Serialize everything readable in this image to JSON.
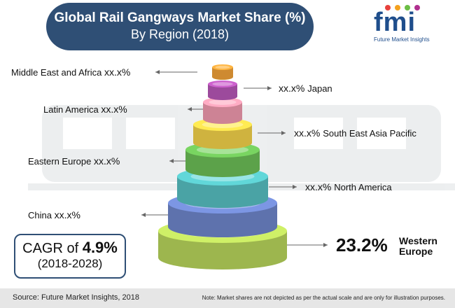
{
  "title": {
    "line1": "Global Rail Gangways Market Share (%)",
    "line2": "By Region (2018)"
  },
  "logo": {
    "mark": "fmi",
    "tagline": "Future Market Insights"
  },
  "chart_data": {
    "type": "pie",
    "title": "Global Rail Gangways Market Share (%) By Region (2018)",
    "categories": [
      "Middle East and Africa",
      "Japan",
      "Latin America",
      "South East Asia Pacific",
      "Eastern Europe",
      "North America",
      "China",
      "Western Europe"
    ],
    "value_labels": [
      "xx.x%",
      "xx.x%",
      "xx.x%",
      "xx.x%",
      "xx.x%",
      "xx.x%",
      "xx.x%",
      "23.2%"
    ],
    "values": [
      null,
      null,
      null,
      null,
      null,
      null,
      null,
      23.2
    ],
    "colors": [
      "#f2a23a",
      "#b757b8",
      "#f19aaf",
      "#f4d24a",
      "#6cbe57",
      "#57c0c2",
      "#6f86cc",
      "#b9d65c"
    ],
    "series": [
      {
        "values": [
          null,
          null,
          null,
          null,
          null,
          null,
          null,
          23.2
        ]
      }
    ]
  },
  "cagr": {
    "prefix": "CAGR of ",
    "value": "4.9%",
    "period": "(2018-2028)"
  },
  "footer": {
    "source": "Source: Future Market Insights, 2018",
    "note": "Note: Market shares are not depicted as per the actual scale and are only for illustration purposes."
  }
}
